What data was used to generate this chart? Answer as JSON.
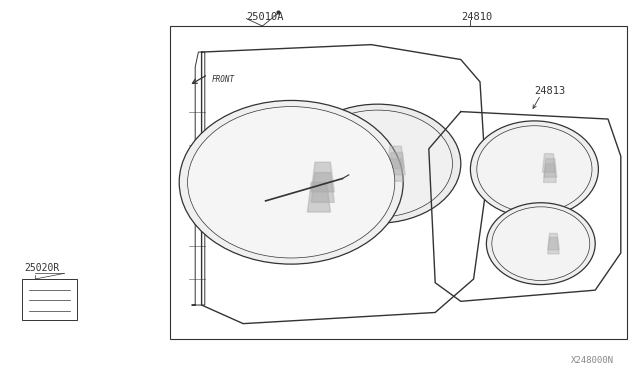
{
  "bg_color": "#ffffff",
  "line_color": "#333333",
  "part_number_main": "24810",
  "part_number_cluster": "24813",
  "part_number_screw": "25010A",
  "part_number_relay": "25020R",
  "diagram_code": "X248000N"
}
